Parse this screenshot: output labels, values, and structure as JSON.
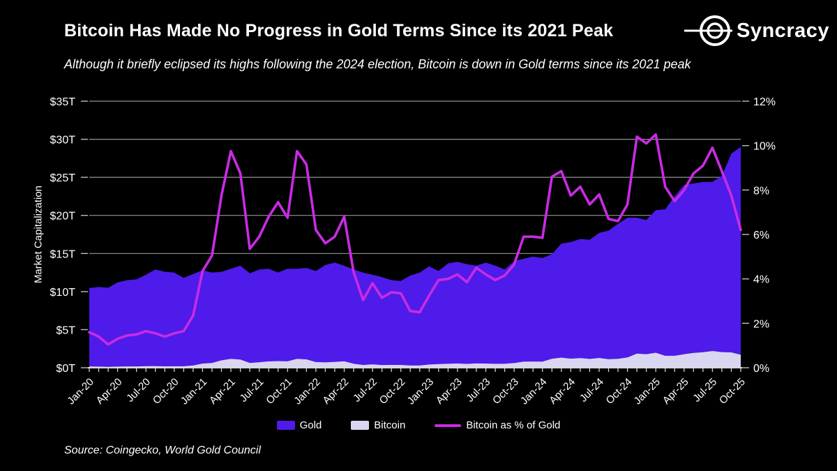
{
  "header": {
    "title": "Bitcoin Has Made No Progress in Gold Terms Since its 2021 Peak",
    "subtitle": "Although it briefly eclipsed its highs following the 2024 election, Bitcoin is down in Gold terms since its 2021 peak"
  },
  "logo": {
    "brand": "Syncracy"
  },
  "source": "Source: Coingecko, World Gold Council",
  "legend": {
    "items": [
      {
        "label": "Gold",
        "type": "swatch",
        "color": "#4E1BEA"
      },
      {
        "label": "Bitcoin",
        "type": "swatch",
        "color": "#D9D6F2"
      },
      {
        "label": "Bitcoin as % of Gold",
        "type": "line",
        "color": "#C92BE3"
      }
    ]
  },
  "chart_data": {
    "type": "area",
    "title": "Bitcoin Has Made No Progress in Gold Terms Since its 2021 Peak",
    "x_label_every": 3,
    "grid": {
      "horizontal": true,
      "color": "#949494"
    },
    "axis_line_color": "#D9D9D9",
    "background": "#000000",
    "left_axis": {
      "title": "Market Capitalization",
      "min": 0,
      "max": 35,
      "tick_step": 5,
      "tick_labels": [
        "$0T",
        "$5T",
        "$10T",
        "$15T",
        "$20T",
        "$25T",
        "$30T",
        "$35T"
      ]
    },
    "right_axis": {
      "min": 0,
      "max": 12,
      "tick_step": 2,
      "tick_labels": [
        "0%",
        "2%",
        "4%",
        "6%",
        "8%",
        "10%",
        "12%"
      ]
    },
    "x": [
      "Jan-20",
      "Feb-20",
      "Mar-20",
      "Apr-20",
      "May-20",
      "Jun-20",
      "Jul-20",
      "Aug-20",
      "Sep-20",
      "Oct-20",
      "Nov-20",
      "Dec-20",
      "Jan-21",
      "Feb-21",
      "Mar-21",
      "Apr-21",
      "May-21",
      "Jun-21",
      "Jul-21",
      "Aug-21",
      "Sep-21",
      "Oct-21",
      "Nov-21",
      "Dec-21",
      "Jan-22",
      "Feb-22",
      "Mar-22",
      "Apr-22",
      "May-22",
      "Jun-22",
      "Jul-22",
      "Aug-22",
      "Sep-22",
      "Oct-22",
      "Nov-22",
      "Dec-22",
      "Jan-23",
      "Feb-23",
      "Mar-23",
      "Apr-23",
      "May-23",
      "Jun-23",
      "Jul-23",
      "Aug-23",
      "Sep-23",
      "Oct-23",
      "Nov-23",
      "Dec-23",
      "Jan-24",
      "Feb-24",
      "Mar-24",
      "Apr-24",
      "May-24",
      "Jun-24",
      "Jul-24",
      "Aug-24",
      "Sep-24",
      "Oct-24",
      "Nov-24",
      "Dec-24",
      "Jan-25",
      "Feb-25",
      "Mar-25",
      "Apr-25",
      "May-25",
      "Jun-25",
      "Jul-25",
      "Aug-25",
      "Sep-25",
      "Oct-25"
    ],
    "series": [
      {
        "name": "Bitcoin",
        "kind": "area",
        "axis": "left",
        "color": "#D9D6F2",
        "stack_level": 0,
        "values": [
          0.17,
          0.15,
          0.11,
          0.15,
          0.17,
          0.17,
          0.2,
          0.22,
          0.18,
          0.19,
          0.19,
          0.29,
          0.55,
          0.63,
          0.97,
          1.17,
          1.08,
          0.63,
          0.72,
          0.83,
          0.87,
          0.84,
          1.16,
          1.1,
          0.74,
          0.71,
          0.77,
          0.85,
          0.53,
          0.37,
          0.45,
          0.36,
          0.38,
          0.37,
          0.3,
          0.3,
          0.42,
          0.48,
          0.53,
          0.56,
          0.5,
          0.58,
          0.55,
          0.51,
          0.52,
          0.62,
          0.8,
          0.82,
          0.8,
          1.18,
          1.33,
          1.19,
          1.27,
          1.15,
          1.28,
          1.13,
          1.17,
          1.35,
          1.86,
          1.78,
          1.97,
          1.57,
          1.57,
          1.78,
          1.95,
          2.03,
          2.2,
          2.05,
          2.02,
          1.7
        ]
      },
      {
        "name": "Gold",
        "kind": "area",
        "axis": "left",
        "color": "#4E1BEA",
        "stack_level": 1,
        "values": [
          10.28,
          10.45,
          10.39,
          11.05,
          11.33,
          11.43,
          12.0,
          12.68,
          12.42,
          12.31,
          11.61,
          12.01,
          12.25,
          11.87,
          11.63,
          11.83,
          12.32,
          11.77,
          12.18,
          12.17,
          11.63,
          12.16,
          11.84,
          12.0,
          11.96,
          12.79,
          13.03,
          12.55,
          12.37,
          12.13,
          11.75,
          11.54,
          11.12,
          11.03,
          11.8,
          12.2,
          12.88,
          12.22,
          13.17,
          13.34,
          13.1,
          12.82,
          13.25,
          12.89,
          12.38,
          13.38,
          13.5,
          13.78,
          13.6,
          13.72,
          14.97,
          15.31,
          15.63,
          15.65,
          16.42,
          16.87,
          17.73,
          18.35,
          17.84,
          17.62,
          18.73,
          19.23,
          20.93,
          22.22,
          22.25,
          22.37,
          22.2,
          23.15,
          26.08,
          27.3
        ]
      },
      {
        "name": "Bitcoin as % of Gold",
        "kind": "line",
        "axis": "right",
        "color": "#C92BE3",
        "values": [
          1.6,
          1.4,
          1.05,
          1.3,
          1.45,
          1.5,
          1.65,
          1.55,
          1.4,
          1.55,
          1.65,
          2.35,
          4.35,
          5.05,
          7.75,
          9.75,
          8.75,
          5.35,
          5.9,
          6.8,
          7.45,
          6.75,
          9.75,
          9.15,
          6.2,
          5.6,
          5.9,
          6.8,
          4.3,
          3.05,
          3.8,
          3.15,
          3.4,
          3.35,
          2.55,
          2.5,
          3.25,
          3.95,
          4.0,
          4.2,
          3.85,
          4.5,
          4.2,
          3.95,
          4.15,
          4.65,
          5.9,
          5.9,
          5.85,
          8.6,
          8.85,
          7.75,
          8.15,
          7.35,
          7.8,
          6.7,
          6.6,
          7.35,
          10.4,
          10.1,
          10.5,
          8.15,
          7.5,
          8.0,
          8.75,
          9.1,
          9.9,
          8.85,
          7.75,
          6.2
        ]
      }
    ]
  }
}
